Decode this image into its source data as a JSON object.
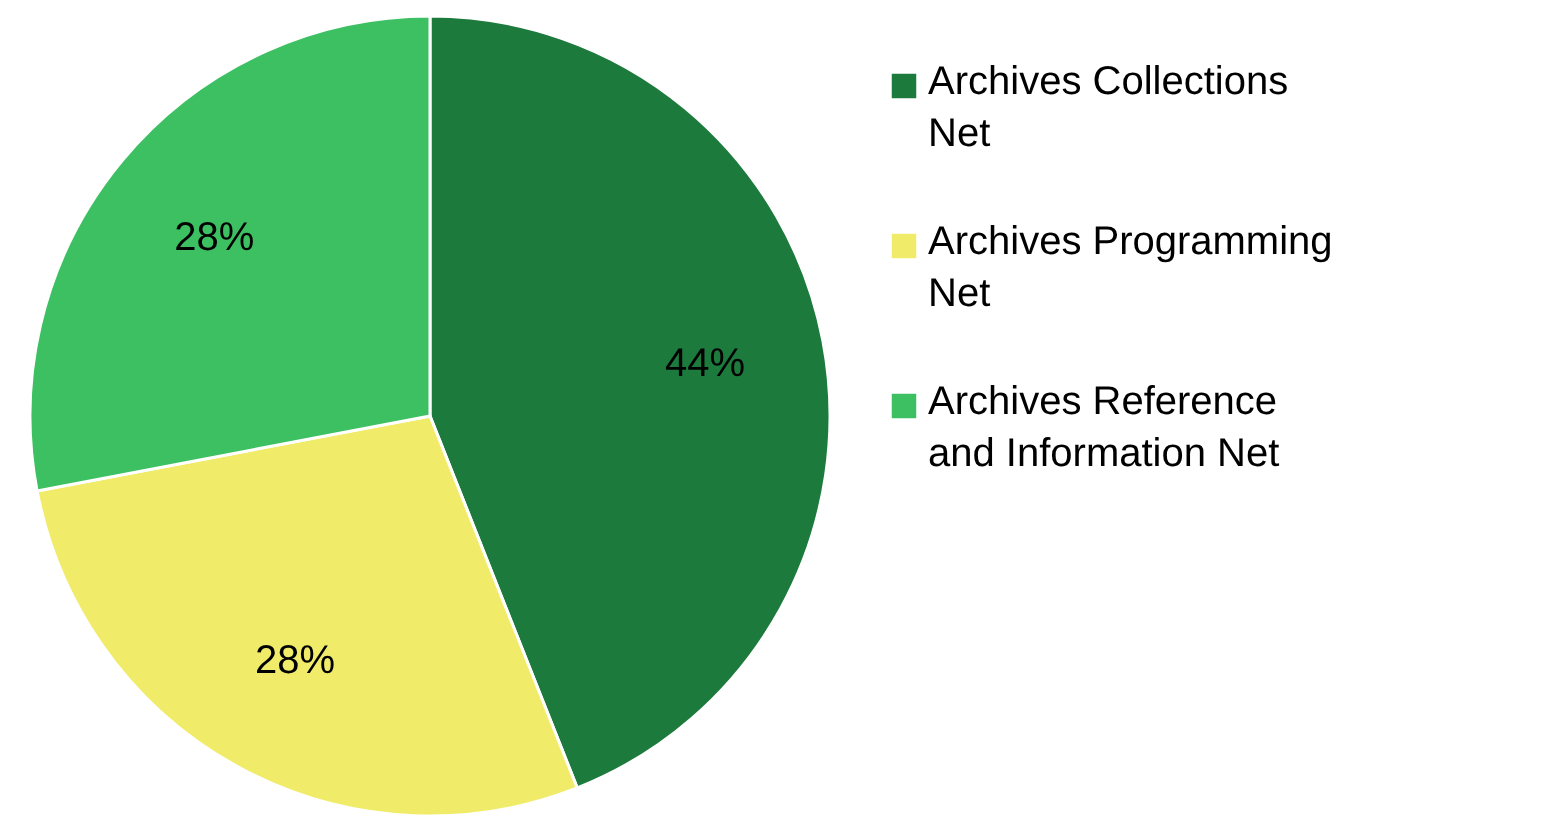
{
  "chart_data": {
    "type": "pie",
    "categories": [
      "Archives Collections Net",
      "Archives Programming Net",
      "Archives Reference and Information Net"
    ],
    "values": [
      44,
      28,
      28
    ],
    "colors": [
      "#1c7a3c",
      "#f0ec6a",
      "#3cc062"
    ],
    "value_labels": [
      "44%",
      "28%",
      "28%"
    ],
    "legend": "right"
  }
}
